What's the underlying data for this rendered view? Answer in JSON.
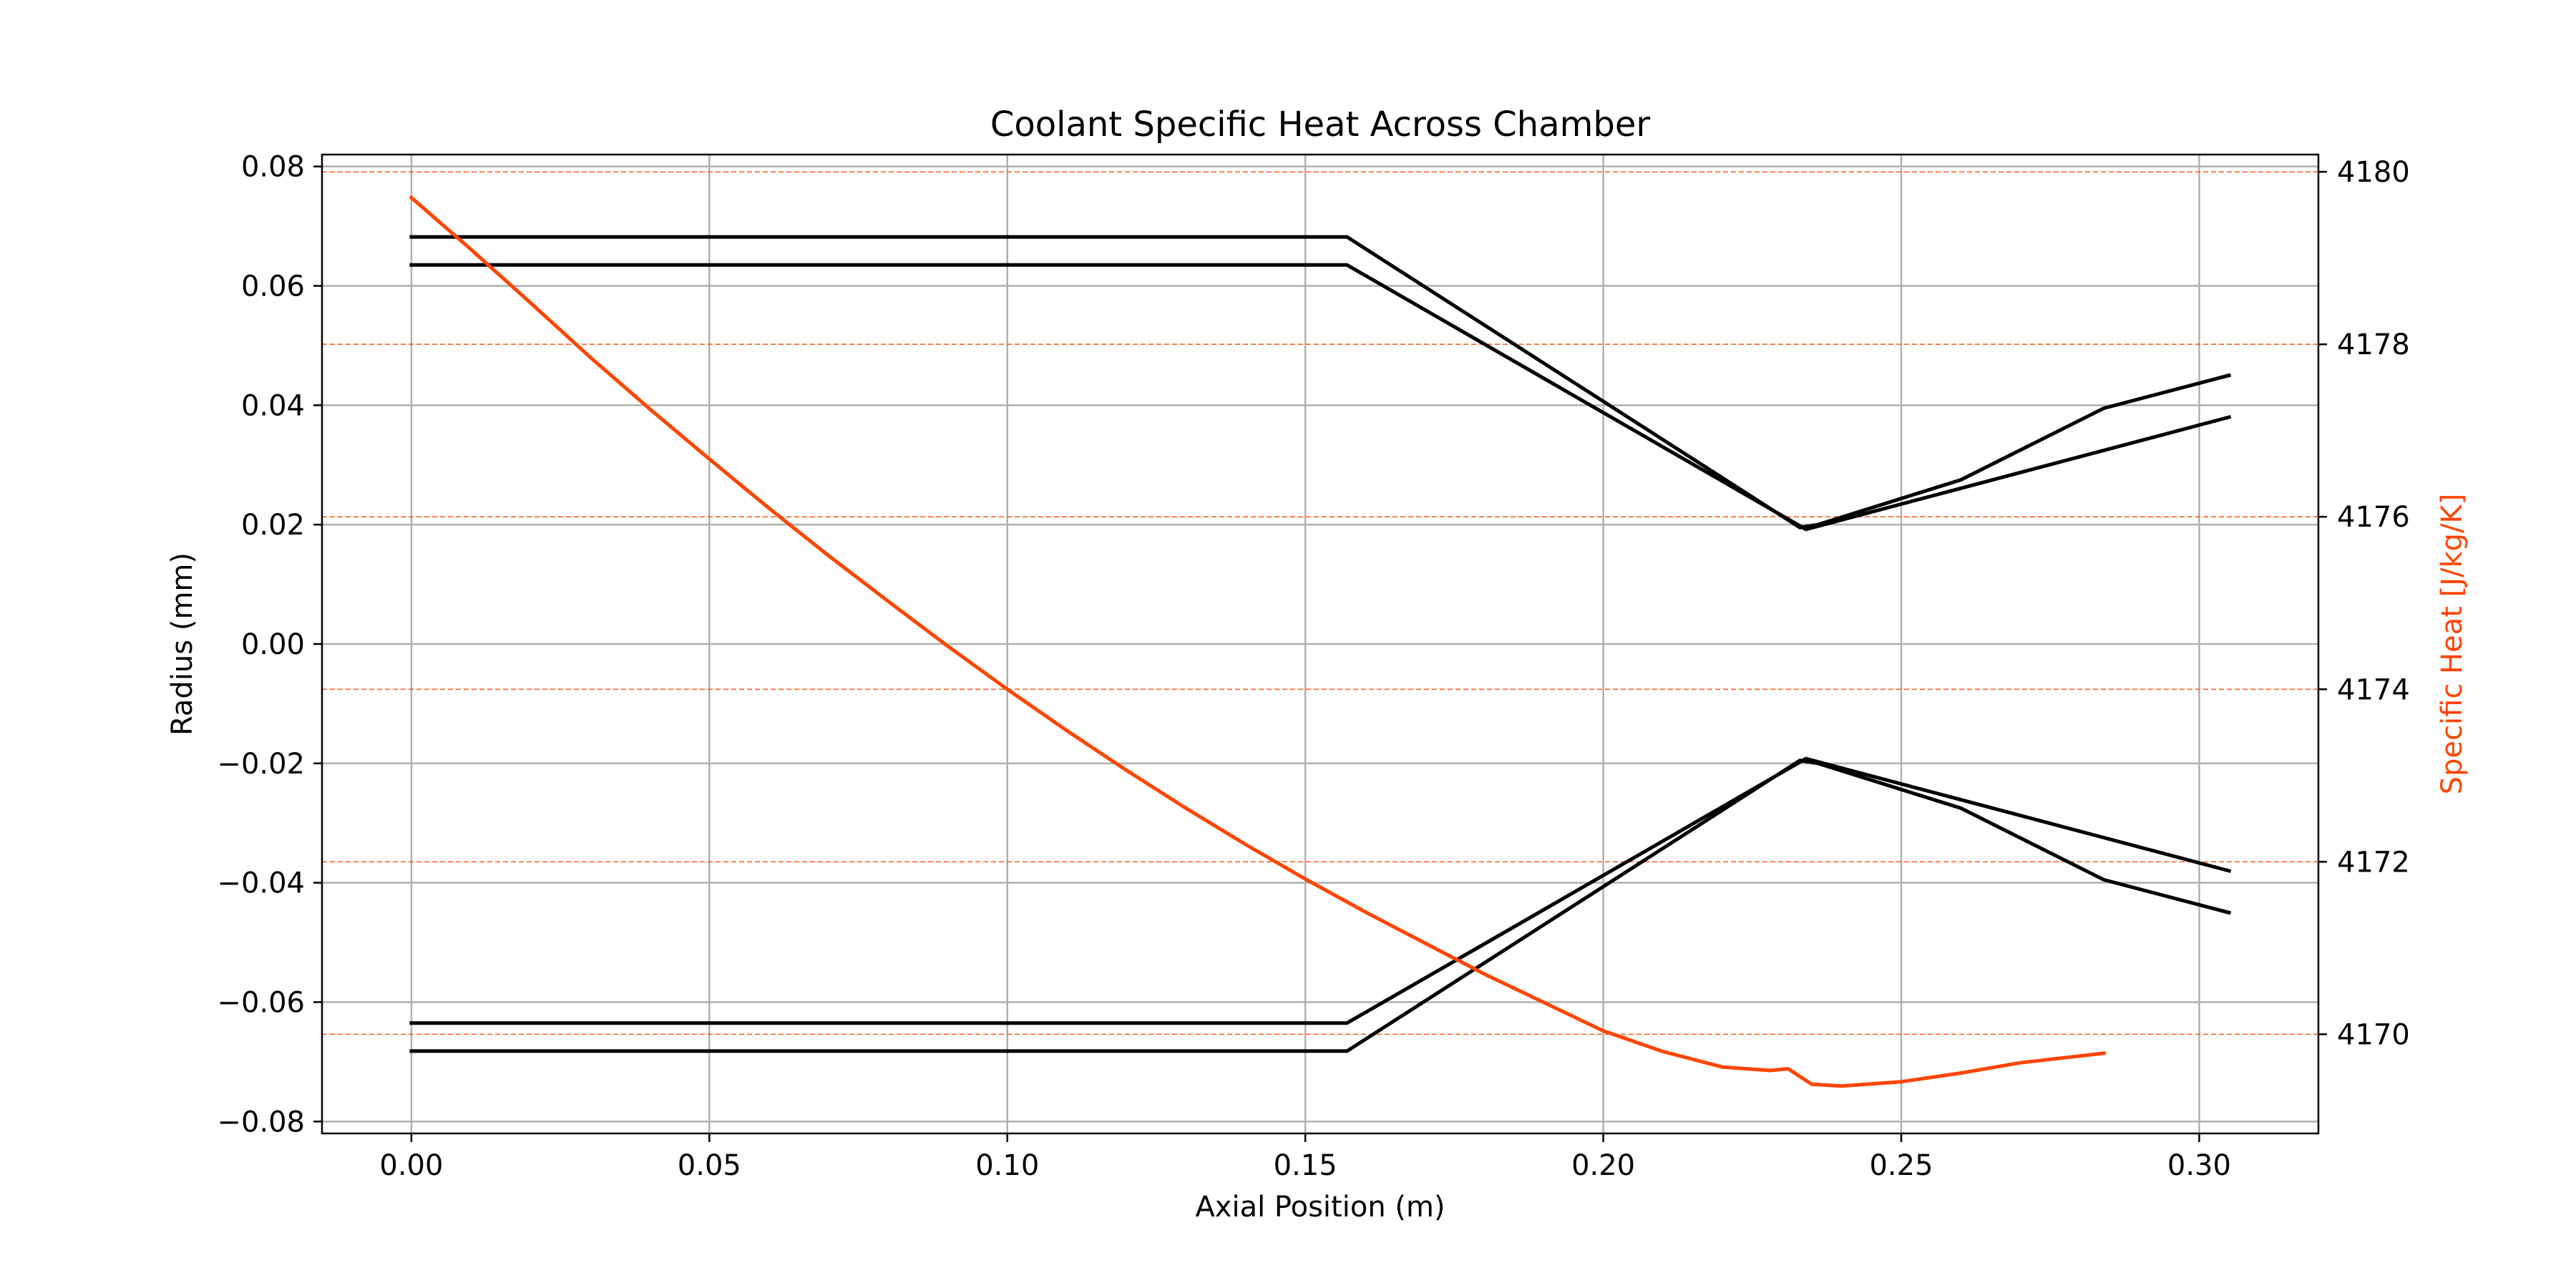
{
  "chart_data": {
    "type": "line",
    "title": "Coolant Specific Heat Across Chamber",
    "xlabel": "Axial Position (m)",
    "ylabel": "Radius (mm)",
    "y2label": "Specific Heat [J/kg/K]",
    "xlim": [
      -0.015,
      0.32
    ],
    "ylim": [
      -0.082,
      0.082
    ],
    "y2lim": [
      4168.85,
      4180.2
    ],
    "xticks": [
      0.0,
      0.05,
      0.1,
      0.15,
      0.2,
      0.25,
      0.3
    ],
    "xtick_labels": [
      "0.00",
      "0.05",
      "0.10",
      "0.15",
      "0.20",
      "0.25",
      "0.30"
    ],
    "yticks": [
      0.08,
      0.06,
      0.04,
      0.02,
      0.0,
      -0.02,
      -0.04,
      -0.06,
      -0.08
    ],
    "ytick_labels": [
      "0.08",
      "0.06",
      "0.04",
      "0.02",
      "0.00",
      "−0.02",
      "−0.04",
      "−0.06",
      "−0.08"
    ],
    "y2ticks": [
      4180,
      4178,
      4176,
      4174,
      4172,
      4170
    ],
    "y2tick_labels": [
      "4180",
      "4178",
      "4176",
      "4174",
      "4172",
      "4170"
    ],
    "grid": true,
    "colors": {
      "contour": "#000000",
      "specific_heat": "#ff4500",
      "grid": "#b0b0b0",
      "secondary_grid": "#ff4500"
    },
    "series": [
      {
        "axis": "left",
        "points": [
          [
            0.0,
            0.0682
          ],
          [
            0.157,
            0.0682
          ],
          [
            0.233,
            0.0195
          ],
          [
            0.236,
            0.02
          ],
          [
            0.26,
            0.0275
          ],
          [
            0.284,
            0.0395
          ],
          [
            0.305,
            0.045
          ]
        ]
      },
      {
        "axis": "left",
        "points": [
          [
            0.0,
            0.0635
          ],
          [
            0.157,
            0.0635
          ],
          [
            0.234,
            0.0192
          ],
          [
            0.305,
            0.038
          ]
        ]
      },
      {
        "axis": "left",
        "points": [
          [
            0.0,
            -0.0635
          ],
          [
            0.157,
            -0.0635
          ],
          [
            0.234,
            -0.0192
          ],
          [
            0.305,
            -0.038
          ]
        ]
      },
      {
        "axis": "left",
        "points": [
          [
            0.0,
            -0.0682
          ],
          [
            0.157,
            -0.0682
          ],
          [
            0.233,
            -0.0195
          ],
          [
            0.236,
            -0.02
          ],
          [
            0.26,
            -0.0275
          ],
          [
            0.284,
            -0.0395
          ],
          [
            0.305,
            -0.045
          ]
        ]
      },
      {
        "axis": "right",
        "points": [
          [
            0.0,
            4179.7
          ],
          [
            0.01,
            4179.1
          ],
          [
            0.02,
            4178.48
          ],
          [
            0.03,
            4177.85
          ],
          [
            0.04,
            4177.25
          ],
          [
            0.05,
            4176.67
          ],
          [
            0.06,
            4176.1
          ],
          [
            0.07,
            4175.55
          ],
          [
            0.08,
            4175.02
          ],
          [
            0.09,
            4174.5
          ],
          [
            0.1,
            4174.0
          ],
          [
            0.11,
            4173.52
          ],
          [
            0.12,
            4173.06
          ],
          [
            0.13,
            4172.62
          ],
          [
            0.14,
            4172.2
          ],
          [
            0.15,
            4171.8
          ],
          [
            0.16,
            4171.42
          ],
          [
            0.17,
            4171.06
          ],
          [
            0.18,
            4170.7
          ],
          [
            0.19,
            4170.37
          ],
          [
            0.2,
            4170.04
          ],
          [
            0.21,
            4169.8
          ],
          [
            0.22,
            4169.62
          ],
          [
            0.228,
            4169.58
          ],
          [
            0.231,
            4169.6
          ],
          [
            0.235,
            4169.42
          ],
          [
            0.24,
            4169.4
          ],
          [
            0.25,
            4169.45
          ],
          [
            0.26,
            4169.55
          ],
          [
            0.27,
            4169.67
          ],
          [
            0.284,
            4169.78
          ]
        ]
      }
    ]
  }
}
